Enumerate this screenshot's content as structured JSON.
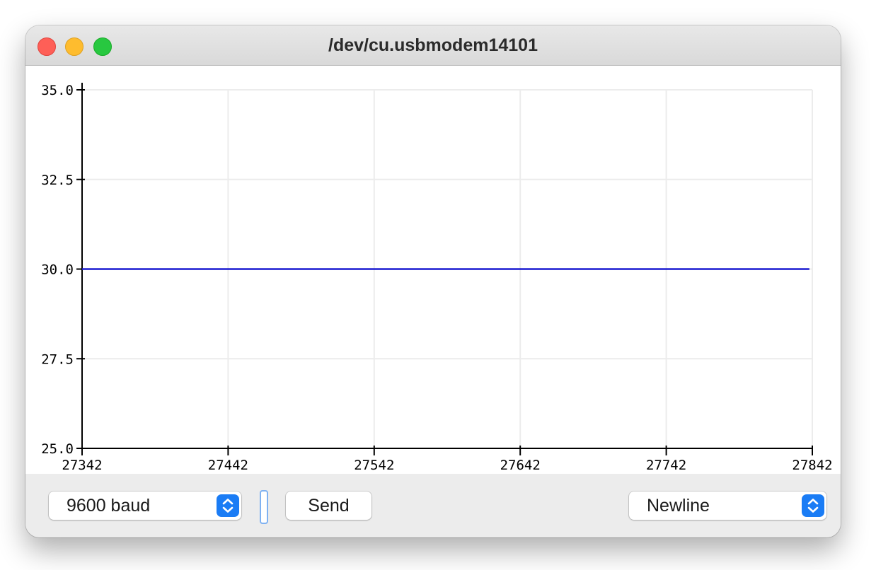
{
  "window": {
    "title": "/dev/cu.usbmodem14101"
  },
  "controls": {
    "baud_rate": "9600 baud",
    "send_label": "Send",
    "line_ending": "Newline"
  },
  "colors": {
    "series_line": "#1a1ad0",
    "stepper_accent": "#1a7cf5"
  },
  "icons": {
    "baud_stepper": "up-down-chevron-icon",
    "line_ending_stepper": "up-down-chevron-icon"
  },
  "chart_data": {
    "type": "line",
    "title": "",
    "xlabel": "",
    "ylabel": "",
    "xlim": [
      27342,
      27842
    ],
    "ylim": [
      25.0,
      35.0
    ],
    "x_ticks": [
      "27342",
      "27442",
      "27542",
      "27642",
      "27742",
      "27842"
    ],
    "y_ticks": [
      "25.0",
      "27.5",
      "30.0",
      "32.5",
      "35.0"
    ],
    "grid": true,
    "legend": "none",
    "series": [
      {
        "x": [
          27342,
          27840
        ],
        "values": [
          30.0,
          30.0
        ]
      }
    ]
  }
}
